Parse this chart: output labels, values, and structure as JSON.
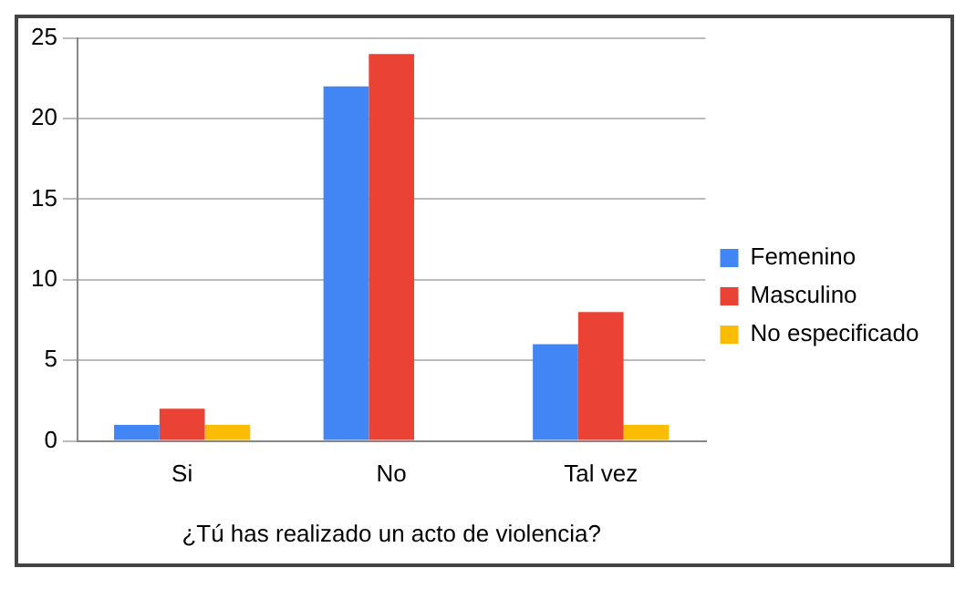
{
  "chart_data": {
    "type": "bar",
    "xlabel": "¿Tú has realizado un acto de violencia?",
    "categories": [
      "Si",
      "No",
      "Tal vez"
    ],
    "series": [
      {
        "name": "Femenino",
        "color": "#4285f4",
        "values": [
          1,
          22,
          6
        ]
      },
      {
        "name": "Masculino",
        "color": "#ea4335",
        "values": [
          2,
          24,
          8
        ]
      },
      {
        "name": "No especificado",
        "color": "#fbbc04",
        "values": [
          1,
          0,
          1
        ]
      }
    ],
    "ylim": [
      0,
      25
    ],
    "yticks": [
      0,
      5,
      10,
      15,
      20,
      25
    ],
    "grid": "y",
    "legend": "right"
  }
}
